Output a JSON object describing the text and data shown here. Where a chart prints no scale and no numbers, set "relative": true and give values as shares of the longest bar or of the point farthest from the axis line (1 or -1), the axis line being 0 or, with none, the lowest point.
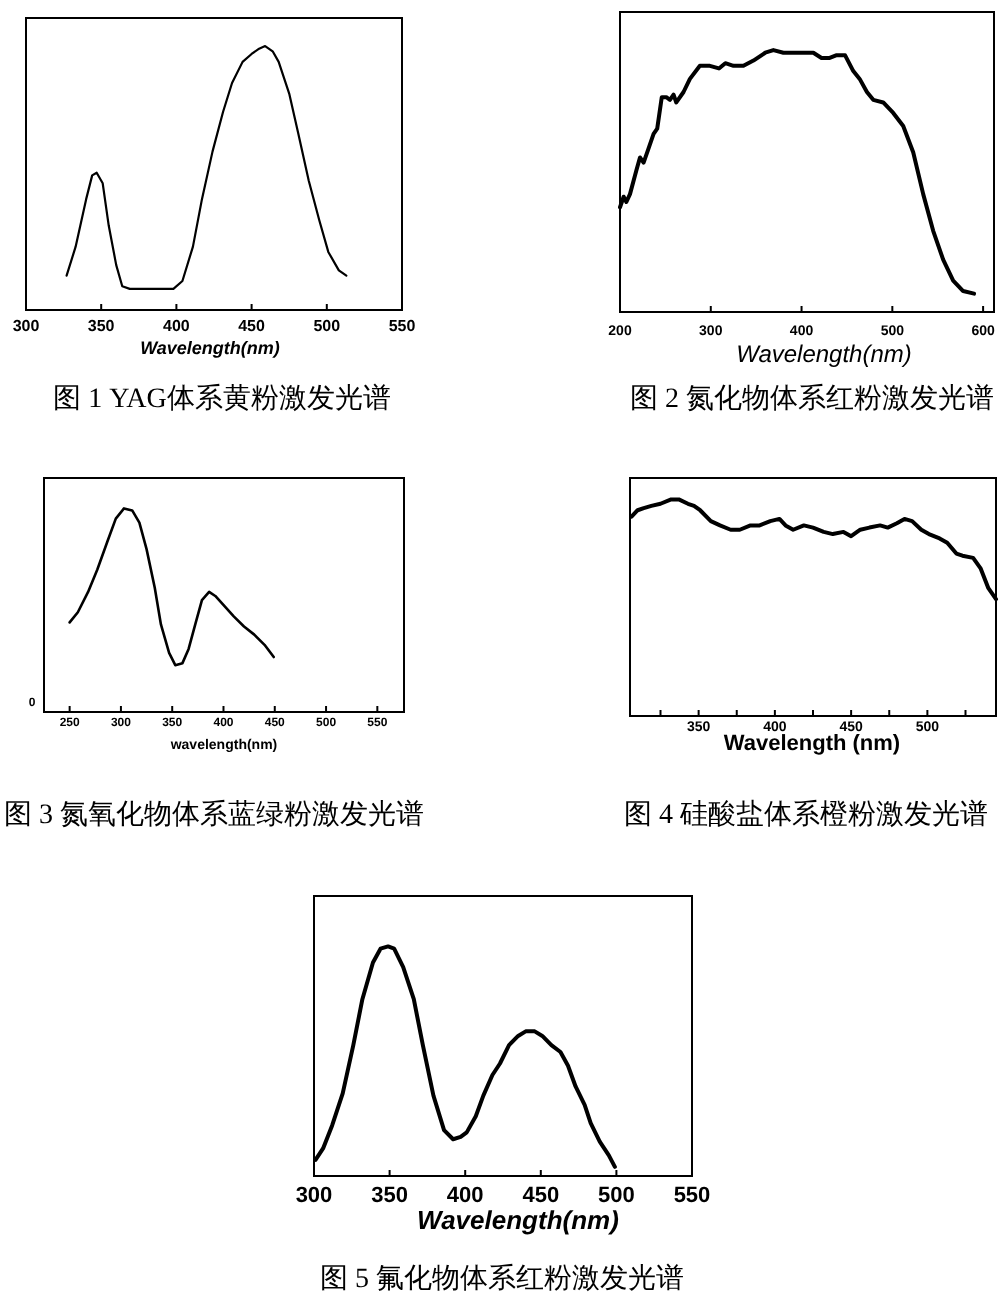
{
  "chart_data": [
    {
      "type": "line",
      "title": "图 1 YAG体系黄粉激发光谱",
      "xlabel": "Wavelength(nm)",
      "relative": true,
      "tick_labels": "x",
      "xlim": [
        300,
        550
      ],
      "xticks": [
        300,
        350,
        400,
        450,
        500,
        550
      ],
      "x": [
        327,
        333,
        340,
        344,
        347,
        351,
        355,
        360,
        364,
        369,
        384,
        398,
        404,
        411,
        417,
        424,
        431,
        437,
        444,
        450,
        455,
        459,
        464,
        468,
        475,
        481,
        488,
        495,
        501,
        508,
        513
      ],
      "series": [
        {
          "color": "#000000",
          "values": [
            0.13,
            0.24,
            0.42,
            0.51,
            0.52,
            0.48,
            0.32,
            0.17,
            0.09,
            0.08,
            0.08,
            0.08,
            0.11,
            0.24,
            0.42,
            0.6,
            0.75,
            0.86,
            0.94,
            0.97,
            0.99,
            1,
            0.98,
            0.94,
            0.82,
            0.67,
            0.49,
            0.34,
            0.22,
            0.15,
            0.13
          ]
        }
      ]
    },
    {
      "type": "line",
      "title": "图 2 氮化物体系红粉激发光谱",
      "xlabel": "Wavelength(nm)",
      "relative": true,
      "tick_labels": "x",
      "xlim": [
        200,
        612
      ],
      "xticks": [
        200,
        300,
        400,
        500,
        600
      ],
      "x": [
        200,
        204,
        207,
        211,
        218,
        222,
        226,
        231,
        237,
        241,
        246,
        251,
        255,
        259,
        262,
        270,
        277,
        288,
        299,
        309,
        316,
        325,
        336,
        347,
        360,
        369,
        380,
        391,
        402,
        413,
        422,
        431,
        438,
        448,
        457,
        464,
        472,
        479,
        490,
        501,
        512,
        523,
        534,
        545,
        556,
        567,
        578,
        590
      ],
      "series": [
        {
          "color": "#000000",
          "values": [
            0.4,
            0.44,
            0.42,
            0.45,
            0.54,
            0.59,
            0.57,
            0.62,
            0.68,
            0.7,
            0.82,
            0.82,
            0.81,
            0.83,
            0.8,
            0.84,
            0.89,
            0.94,
            0.94,
            0.93,
            0.95,
            0.94,
            0.94,
            0.96,
            0.99,
            1,
            0.99,
            0.99,
            0.99,
            0.99,
            0.97,
            0.97,
            0.98,
            0.98,
            0.92,
            0.89,
            0.84,
            0.81,
            0.8,
            0.76,
            0.71,
            0.61,
            0.45,
            0.31,
            0.2,
            0.12,
            0.08,
            0.07
          ]
        }
      ]
    },
    {
      "type": "line",
      "title": "图 3 氮氧化物体系蓝绿粉激发光谱",
      "xlabel": "wavelength(nm)",
      "relative": true,
      "tick_labels": "x",
      "annotations": [
        "0"
      ],
      "xlim": [
        225,
        576
      ],
      "xticks": [
        250,
        300,
        350,
        400,
        450,
        500,
        550
      ],
      "x": [
        250,
        258,
        268,
        277,
        287,
        295,
        303,
        311,
        318,
        325,
        333,
        339,
        347,
        353,
        360,
        366,
        373,
        379,
        386,
        392,
        401,
        410,
        420,
        430,
        440,
        449
      ],
      "series": [
        {
          "color": "#000000",
          "values": [
            0.44,
            0.49,
            0.59,
            0.7,
            0.84,
            0.95,
            1,
            0.99,
            0.93,
            0.8,
            0.61,
            0.43,
            0.29,
            0.23,
            0.24,
            0.31,
            0.44,
            0.55,
            0.59,
            0.57,
            0.52,
            0.47,
            0.42,
            0.38,
            0.33,
            0.27
          ]
        }
      ]
    },
    {
      "type": "line",
      "title": "图 4 硅酸盐体系橙粉激发光谱",
      "xlabel": "Wavelength (nm)",
      "relative": true,
      "tick_labels": "x",
      "xlim": [
        305,
        545
      ],
      "xticks": [
        {
          "value": 325,
          "label": null
        },
        350,
        {
          "value": 375,
          "label": null
        },
        400,
        {
          "value": 425,
          "label": null
        },
        450,
        {
          "value": 475,
          "label": null
        },
        500,
        {
          "value": 525,
          "label": null
        }
      ],
      "x": [
        306,
        310,
        314,
        319,
        325,
        332,
        337,
        343,
        347,
        351,
        358,
        364,
        371,
        377,
        384,
        390,
        397,
        403,
        407,
        412,
        419,
        425,
        432,
        438,
        445,
        450,
        456,
        462,
        469,
        474,
        480,
        485,
        490,
        496,
        501,
        508,
        513,
        519,
        523,
        530,
        535,
        540,
        545
      ],
      "series": [
        {
          "color": "#000000",
          "values": [
            0.92,
            0.95,
            0.96,
            0.97,
            0.98,
            1,
            1,
            0.98,
            0.97,
            0.95,
            0.9,
            0.88,
            0.86,
            0.86,
            0.88,
            0.88,
            0.9,
            0.91,
            0.88,
            0.86,
            0.88,
            0.87,
            0.85,
            0.84,
            0.85,
            0.83,
            0.86,
            0.87,
            0.88,
            0.87,
            0.89,
            0.91,
            0.9,
            0.86,
            0.84,
            0.82,
            0.8,
            0.75,
            0.74,
            0.73,
            0.68,
            0.59,
            0.54
          ]
        }
      ]
    },
    {
      "type": "line",
      "title": "图 5 氟化物体系红粉激发光谱",
      "xlabel": "Wavelength(nm)",
      "relative": true,
      "tick_labels": "x",
      "xlim": [
        300,
        550
      ],
      "xticks": [
        300,
        350,
        400,
        450,
        500,
        550
      ],
      "x": [
        301,
        306,
        312,
        319,
        326,
        332,
        339,
        344,
        349,
        353,
        359,
        366,
        372,
        379,
        386,
        392,
        397,
        401,
        407,
        412,
        418,
        423,
        429,
        435,
        440,
        446,
        451,
        457,
        463,
        468,
        473,
        479,
        483,
        489,
        495,
        499
      ],
      "series": [
        {
          "color": "#000000",
          "values": [
            0.07,
            0.12,
            0.22,
            0.36,
            0.57,
            0.77,
            0.93,
            0.99,
            1,
            0.99,
            0.91,
            0.77,
            0.57,
            0.35,
            0.2,
            0.16,
            0.17,
            0.19,
            0.26,
            0.35,
            0.44,
            0.49,
            0.57,
            0.61,
            0.63,
            0.63,
            0.61,
            0.57,
            0.54,
            0.48,
            0.39,
            0.31,
            0.23,
            0.15,
            0.09,
            0.04
          ]
        }
      ]
    }
  ]
}
